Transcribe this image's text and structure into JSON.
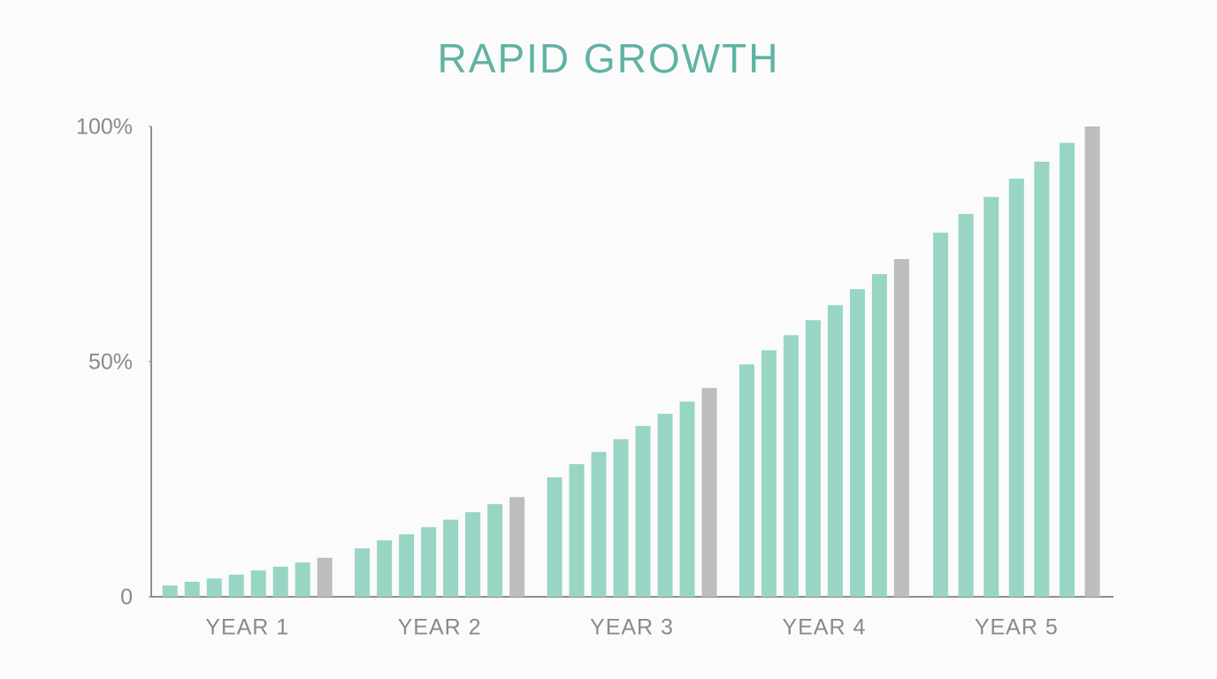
{
  "chart_data": {
    "type": "bar",
    "title": "RAPID GROWTH",
    "categories": [
      "YEAR 1",
      "YEAR 2",
      "YEAR 3",
      "YEAR 4",
      "YEAR 5"
    ],
    "series": [
      {
        "color": "#98d5c4",
        "values": [
          2.4,
          10.3,
          25.4,
          49.4,
          77.4
        ]
      },
      {
        "color": "#98d5c4",
        "values": [
          3.2,
          12.0,
          28.2,
          52.4,
          81.4
        ]
      },
      {
        "color": "#98d5c4",
        "values": [
          3.9,
          13.3,
          30.8,
          55.6,
          85.0
        ]
      },
      {
        "color": "#98d5c4",
        "values": [
          4.7,
          14.8,
          33.5,
          58.8,
          88.9
        ]
      },
      {
        "color": "#98d5c4",
        "values": [
          5.6,
          16.4,
          36.3,
          62.0,
          92.5
        ]
      },
      {
        "color": "#98d5c4",
        "values": [
          6.4,
          18.0,
          38.9,
          65.4,
          96.5
        ]
      },
      {
        "color": "#98d5c4",
        "values": [
          7.3,
          19.7,
          41.5,
          68.6,
          null
        ]
      },
      {
        "color": "#bdbdbf",
        "values": [
          8.3,
          21.2,
          44.4,
          71.8,
          100
        ]
      }
    ],
    "ylim": [
      0,
      100
    ],
    "yticks": [
      0,
      {
        "value": 50,
        "label": "50%"
      },
      {
        "value": 100,
        "label": "100%"
      }
    ]
  }
}
